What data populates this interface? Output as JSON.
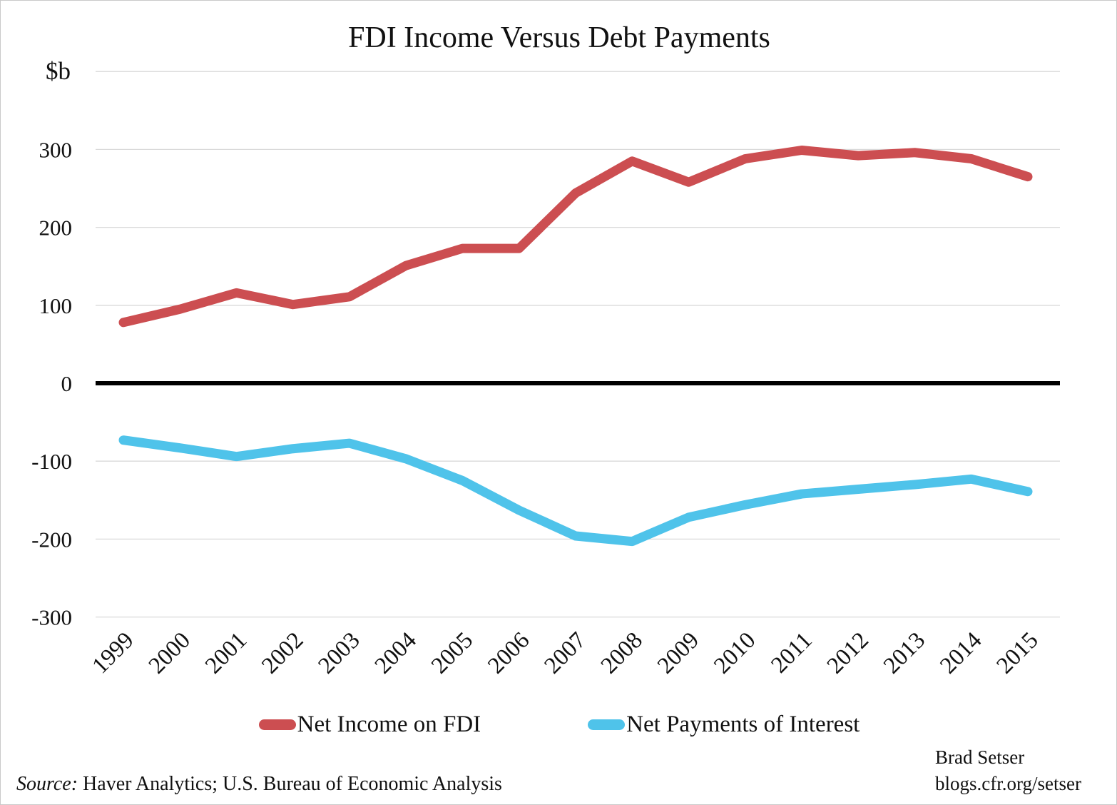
{
  "title": "FDI Income Versus Debt Payments",
  "y_axis_unit_label": "$b",
  "chart_data": {
    "type": "line",
    "x": [
      1999,
      2000,
      2001,
      2002,
      2003,
      2004,
      2005,
      2006,
      2007,
      2008,
      2009,
      2010,
      2011,
      2012,
      2013,
      2014,
      2015
    ],
    "series": [
      {
        "name": "Net Income on FDI",
        "color": "#CC4E51",
        "values": [
          78,
          95,
          116,
          101,
          111,
          151,
          173,
          173,
          244,
          285,
          258,
          288,
          299,
          292,
          296,
          288,
          265
        ]
      },
      {
        "name": "Net Payments of Interest",
        "color": "#4FC3EA",
        "values": [
          -73,
          -83,
          -94,
          -84,
          -77,
          -97,
          -125,
          -163,
          -196,
          -203,
          -172,
          -156,
          -142,
          -136,
          -130,
          -123,
          -139
        ]
      }
    ],
    "title": "FDI Income Versus Debt Payments",
    "xlabel": "",
    "ylabel": "$b",
    "ylim": [
      -350,
      410
    ],
    "ytick_values": [
      300,
      200,
      100,
      0,
      -100,
      -200,
      -300
    ],
    "gridline_values": [
      400,
      300,
      200,
      100,
      -100,
      -200,
      -300
    ],
    "zero_line_value": 0,
    "grid": true,
    "legend_position": "bottom",
    "gridline_color": "#DADADA",
    "zero_line_color": "#000000"
  },
  "legend": {
    "items": [
      {
        "label": "Net Income on FDI",
        "color": "#CC4E51"
      },
      {
        "label": "Net Payments of Interest",
        "color": "#4FC3EA"
      }
    ]
  },
  "source": {
    "prefix": "Source:",
    "text": " Haver Analytics; U.S. Bureau of Economic Analysis"
  },
  "attribution": {
    "line1": "Brad Setser",
    "line2": "blogs.cfr.org/setser"
  }
}
